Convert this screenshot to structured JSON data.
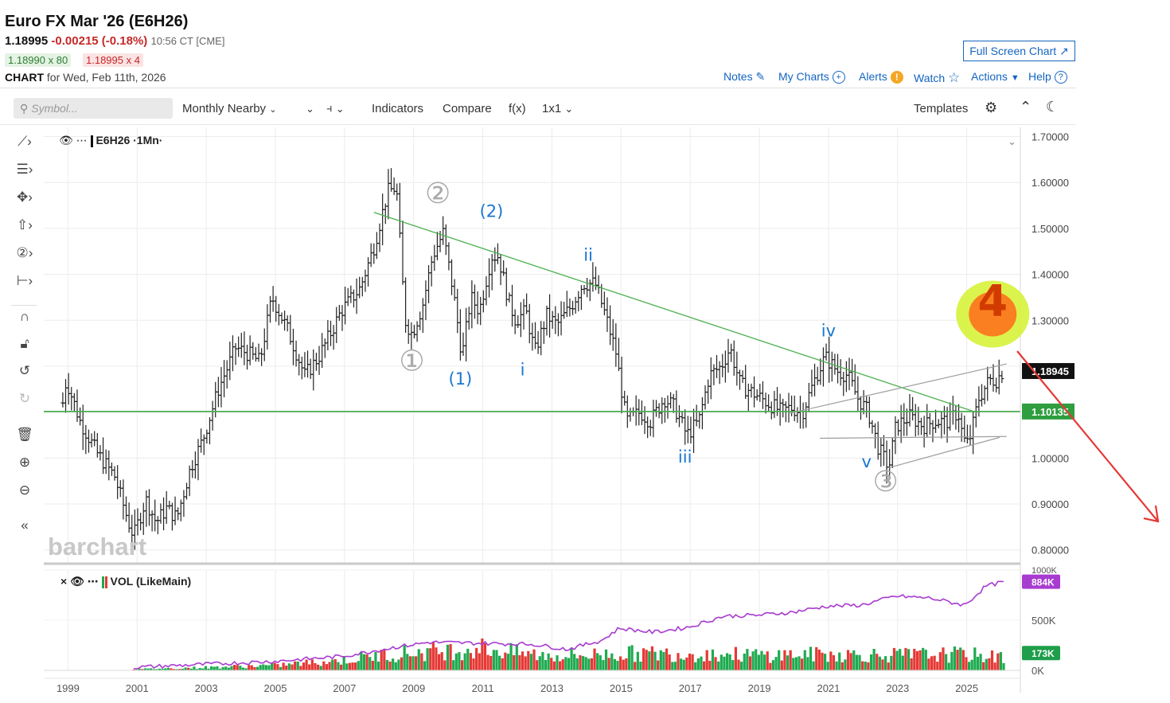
{
  "header": {
    "title": "Euro FX Mar '26 (E6H26)",
    "last": "1.18995",
    "change": "-0.00215 (-0.18%)",
    "time": "10:56 CT [CME]",
    "bid": "1.18990 x 80",
    "ask": "1.18995 x 4",
    "chart_word": "CHART",
    "chart_date": "for Wed, Feb 11th, 2026",
    "full_screen": "Full Screen Chart ↗"
  },
  "links": {
    "notes": "Notes",
    "my_charts": "My Charts",
    "alerts": "Alerts",
    "watch": "Watch",
    "actions": "Actions",
    "help": "Help"
  },
  "toolbar": {
    "symbol_placeholder": "Symbol...",
    "period": "Monthly Nearby",
    "indicators": "Indicators",
    "compare": "Compare",
    "fx": "f(x)",
    "layout": "1x1",
    "templates": "Templates"
  },
  "legend": {
    "main": "E6H26 ·1Mn·",
    "vol": "VOL (LikeMain)"
  },
  "watermark": "barchart",
  "icons": [
    "search-icon",
    "chevron-down-icon",
    "bar-style-icon",
    "gear-icon",
    "collapse-icon",
    "moon-icon",
    "eye-icon",
    "pencil-icon",
    "plus-circle-icon",
    "star-icon",
    "question-icon",
    "line-tool-icon",
    "fib-tool-icon",
    "shape-tool-icon",
    "arrow-tool-icon",
    "counter-tool-icon",
    "measure-tool-icon",
    "magnet-icon",
    "lock-icon",
    "undo-icon",
    "redo-icon",
    "trash-icon",
    "zoom-in-icon",
    "zoom-out-icon",
    "double-chevron-left-icon"
  ],
  "colors": {
    "up": "#1faa50",
    "down": "#e53935",
    "trendline": "#4caf50",
    "channel": "#9e9e9e",
    "avg": "#a83bd0",
    "annotation_ink": "#1976d2",
    "wave_gray": "#aaaaaa",
    "red_arrow": "#e53935"
  },
  "chart_data": {
    "type": "bar",
    "style": "OHLC monthly bars",
    "x_ticks": [
      "1999",
      "2001",
      "2003",
      "2005",
      "2007",
      "2009",
      "2011",
      "2013",
      "2015",
      "2017",
      "2019",
      "2021",
      "2023",
      "2025"
    ],
    "y_ticks": [
      "1.70000",
      "1.60000",
      "1.50000",
      "1.40000",
      "1.30000",
      "1.20000",
      "1.10000",
      "1.00000",
      "0.90000",
      "0.80000"
    ],
    "ylim": [
      0.77,
      1.72
    ],
    "xlim": [
      1998.35,
      2026.6
    ],
    "price_path": [
      [
        1998.9,
        1.12
      ],
      [
        1999.0,
        1.17
      ],
      [
        1999.4,
        1.08
      ],
      [
        1999.9,
        1.01
      ],
      [
        2000.4,
        0.96
      ],
      [
        2000.8,
        0.86
      ],
      [
        2000.95,
        0.83
      ],
      [
        2001.3,
        0.91
      ],
      [
        2001.6,
        0.86
      ],
      [
        2001.9,
        0.89
      ],
      [
        2002.2,
        0.87
      ],
      [
        2002.6,
        0.98
      ],
      [
        2002.95,
        1.04
      ],
      [
        2003.4,
        1.15
      ],
      [
        2003.9,
        1.24
      ],
      [
        2004.2,
        1.23
      ],
      [
        2004.6,
        1.21
      ],
      [
        2004.95,
        1.35
      ],
      [
        2005.4,
        1.28
      ],
      [
        2005.9,
        1.18
      ],
      [
        2006.3,
        1.22
      ],
      [
        2006.7,
        1.28
      ],
      [
        2006.95,
        1.32
      ],
      [
        2007.5,
        1.37
      ],
      [
        2007.9,
        1.46
      ],
      [
        2008.3,
        1.58
      ],
      [
        2008.55,
        1.59
      ],
      [
        2008.8,
        1.3
      ],
      [
        2009.0,
        1.27
      ],
      [
        2009.3,
        1.33
      ],
      [
        2009.6,
        1.44
      ],
      [
        2009.9,
        1.49
      ],
      [
        2010.2,
        1.36
      ],
      [
        2010.45,
        1.22
      ],
      [
        2010.7,
        1.35
      ],
      [
        2010.95,
        1.32
      ],
      [
        2011.3,
        1.44
      ],
      [
        2011.5,
        1.44
      ],
      [
        2011.8,
        1.34
      ],
      [
        2012.0,
        1.3
      ],
      [
        2012.3,
        1.32
      ],
      [
        2012.55,
        1.23
      ],
      [
        2012.9,
        1.31
      ],
      [
        2013.2,
        1.29
      ],
      [
        2013.6,
        1.33
      ],
      [
        2013.95,
        1.38
      ],
      [
        2014.3,
        1.38
      ],
      [
        2014.6,
        1.31
      ],
      [
        2014.9,
        1.23
      ],
      [
        2015.2,
        1.08
      ],
      [
        2015.6,
        1.1
      ],
      [
        2015.9,
        1.08
      ],
      [
        2016.3,
        1.13
      ],
      [
        2016.6,
        1.11
      ],
      [
        2016.95,
        1.05
      ],
      [
        2017.3,
        1.08
      ],
      [
        2017.6,
        1.18
      ],
      [
        2017.95,
        1.2
      ],
      [
        2018.2,
        1.24
      ],
      [
        2018.5,
        1.16
      ],
      [
        2018.9,
        1.14
      ],
      [
        2019.3,
        1.12
      ],
      [
        2019.7,
        1.1
      ],
      [
        2019.95,
        1.11
      ],
      [
        2020.3,
        1.1
      ],
      [
        2020.7,
        1.18
      ],
      [
        2020.95,
        1.22
      ],
      [
        2021.3,
        1.19
      ],
      [
        2021.6,
        1.18
      ],
      [
        2021.9,
        1.13
      ],
      [
        2022.2,
        1.1
      ],
      [
        2022.5,
        1.02
      ],
      [
        2022.8,
        0.98
      ],
      [
        2023.0,
        1.07
      ],
      [
        2023.4,
        1.09
      ],
      [
        2023.8,
        1.07
      ],
      [
        2024.1,
        1.08
      ],
      [
        2024.5,
        1.08
      ],
      [
        2024.8,
        1.1
      ],
      [
        2024.95,
        1.04
      ],
      [
        2025.1,
        1.03
      ],
      [
        2025.4,
        1.13
      ],
      [
        2025.7,
        1.17
      ],
      [
        2025.9,
        1.17
      ],
      [
        2026.1,
        1.19
      ]
    ],
    "current_price_label": "1.18945",
    "horizontal_level_label": "1.10135",
    "horizontal_level": 1.10135,
    "trendline": [
      [
        2007.9,
        1.535
      ],
      [
        2025.35,
        1.099
      ]
    ],
    "channel_upper": [
      [
        2019.9,
        1.097
      ],
      [
        2026.2,
        1.205
      ]
    ],
    "channel_lower": [
      [
        2020.8,
        1.043
      ],
      [
        2026.2,
        1.047
      ]
    ],
    "channel2_lower": [
      [
        2022.8,
        0.979
      ],
      [
        2026.0,
        1.045
      ]
    ],
    "wave_labels": [
      {
        "text": "①",
        "x": 2009.0,
        "y": 1.19
      },
      {
        "text": "②",
        "x": 2009.75,
        "y": 1.555
      },
      {
        "text": "③",
        "x": 2022.7,
        "y": 0.928
      },
      {
        "text": "(1)",
        "x": 2010.4,
        "y": 1.16
      },
      {
        "text": "(2)",
        "x": 2011.3,
        "y": 1.525
      },
      {
        "text": "i",
        "x": 2012.2,
        "y": 1.18
      },
      {
        "text": "ii",
        "x": 2014.1,
        "y": 1.43
      },
      {
        "text": "iii",
        "x": 2016.9,
        "y": 0.99
      },
      {
        "text": "iv",
        "x": 2021.05,
        "y": 1.265
      },
      {
        "text": "v",
        "x": 2022.15,
        "y": 0.98
      },
      {
        "text": "4",
        "x": 2025.8,
        "y": 1.31
      }
    ],
    "volume": {
      "y_ticks": [
        "1000K",
        "500K",
        "0K"
      ],
      "ylim": [
        0,
        1000
      ],
      "last_avg_label": "884K",
      "last_vol_label": "173K",
      "avg_path": [
        [
          2000.95,
          30
        ],
        [
          2003,
          60
        ],
        [
          2005,
          90
        ],
        [
          2007,
          140
        ],
        [
          2008.5,
          230
        ],
        [
          2009.5,
          280
        ],
        [
          2011,
          270
        ],
        [
          2012.5,
          260
        ],
        [
          2013.5,
          210
        ],
        [
          2014.5,
          300
        ],
        [
          2015,
          420
        ],
        [
          2016,
          380
        ],
        [
          2017,
          430
        ],
        [
          2018,
          540
        ],
        [
          2019,
          550
        ],
        [
          2020,
          580
        ],
        [
          2021,
          640
        ],
        [
          2022,
          650
        ],
        [
          2023,
          740
        ],
        [
          2024,
          720
        ],
        [
          2025,
          650
        ],
        [
          2025.6,
          840
        ],
        [
          2026.15,
          884
        ]
      ],
      "bar_envelope": [
        [
          2000.95,
          15
        ],
        [
          2003,
          40
        ],
        [
          2005,
          70
        ],
        [
          2007,
          140
        ],
        [
          2008.5,
          230
        ],
        [
          2010,
          270
        ],
        [
          2011,
          310
        ],
        [
          2012,
          240
        ],
        [
          2013,
          200
        ],
        [
          2014,
          210
        ],
        [
          2015,
          230
        ],
        [
          2017,
          230
        ],
        [
          2019,
          210
        ],
        [
          2021,
          220
        ],
        [
          2023,
          210
        ],
        [
          2025,
          220
        ],
        [
          2026.15,
          173
        ]
      ]
    }
  }
}
